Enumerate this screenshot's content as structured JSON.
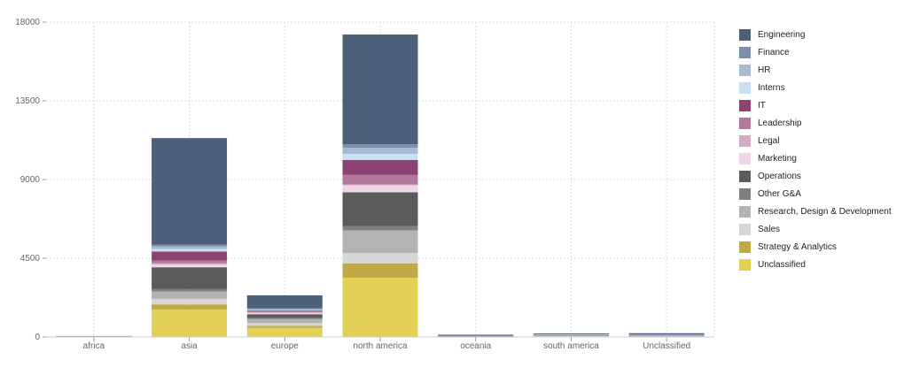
{
  "chart_data": {
    "type": "bar",
    "stacked": true,
    "categories": [
      "africa",
      "asia",
      "europe",
      "north america",
      "oceania",
      "south america",
      "Unclassified"
    ],
    "ylim": [
      0,
      18000
    ],
    "yticks": [
      0,
      4500,
      9000,
      13500,
      18000
    ],
    "grid": true,
    "legend_position": "right",
    "series": [
      {
        "name": "Unclassified",
        "color": "#e2d155",
        "values": [
          20,
          1570,
          520,
          3390,
          15,
          30,
          30
        ]
      },
      {
        "name": "Strategy & Analytics",
        "color": "#c0aa48",
        "values": [
          5,
          290,
          120,
          820,
          5,
          10,
          10
        ]
      },
      {
        "name": "Sales",
        "color": "#d6d6d6",
        "values": [
          25,
          320,
          150,
          580,
          10,
          30,
          20
        ]
      },
      {
        "name": "Research, Design & Development",
        "color": "#b3b3b3",
        "values": [
          15,
          420,
          230,
          1300,
          10,
          20,
          20
        ]
      },
      {
        "name": "Other G&A",
        "color": "#808080",
        "values": [
          5,
          135,
          60,
          240,
          5,
          5,
          5
        ]
      },
      {
        "name": "Operations",
        "color": "#5b5b5b",
        "values": [
          5,
          1250,
          220,
          1940,
          20,
          10,
          15
        ]
      },
      {
        "name": "Marketing",
        "color": "#efd6e6",
        "values": [
          5,
          150,
          80,
          400,
          5,
          5,
          5
        ]
      },
      {
        "name": "Legal",
        "color": "#d5aac5",
        "values": [
          0,
          80,
          30,
          50,
          0,
          0,
          0
        ]
      },
      {
        "name": "Leadership",
        "color": "#b2789d",
        "values": [
          0,
          150,
          50,
          540,
          5,
          5,
          5
        ]
      },
      {
        "name": "IT",
        "color": "#8d4273",
        "values": [
          0,
          520,
          60,
          860,
          5,
          5,
          5
        ]
      },
      {
        "name": "Interns",
        "color": "#c8e0f4",
        "values": [
          0,
          135,
          20,
          350,
          0,
          5,
          5
        ]
      },
      {
        "name": "HR",
        "color": "#a8b9d3",
        "values": [
          0,
          150,
          60,
          350,
          5,
          40,
          20
        ]
      },
      {
        "name": "Finance",
        "color": "#7d8fab",
        "values": [
          0,
          100,
          30,
          200,
          5,
          25,
          15
        ]
      },
      {
        "name": "Engineering",
        "color": "#4d6079",
        "values": [
          0,
          6100,
          750,
          6270,
          40,
          10,
          60
        ]
      }
    ],
    "legend_order": [
      "Engineering",
      "Finance",
      "HR",
      "Interns",
      "IT",
      "Leadership",
      "Legal",
      "Marketing",
      "Operations",
      "Other G&A",
      "Research, Design & Development",
      "Sales",
      "Strategy & Analytics",
      "Unclassified"
    ]
  }
}
